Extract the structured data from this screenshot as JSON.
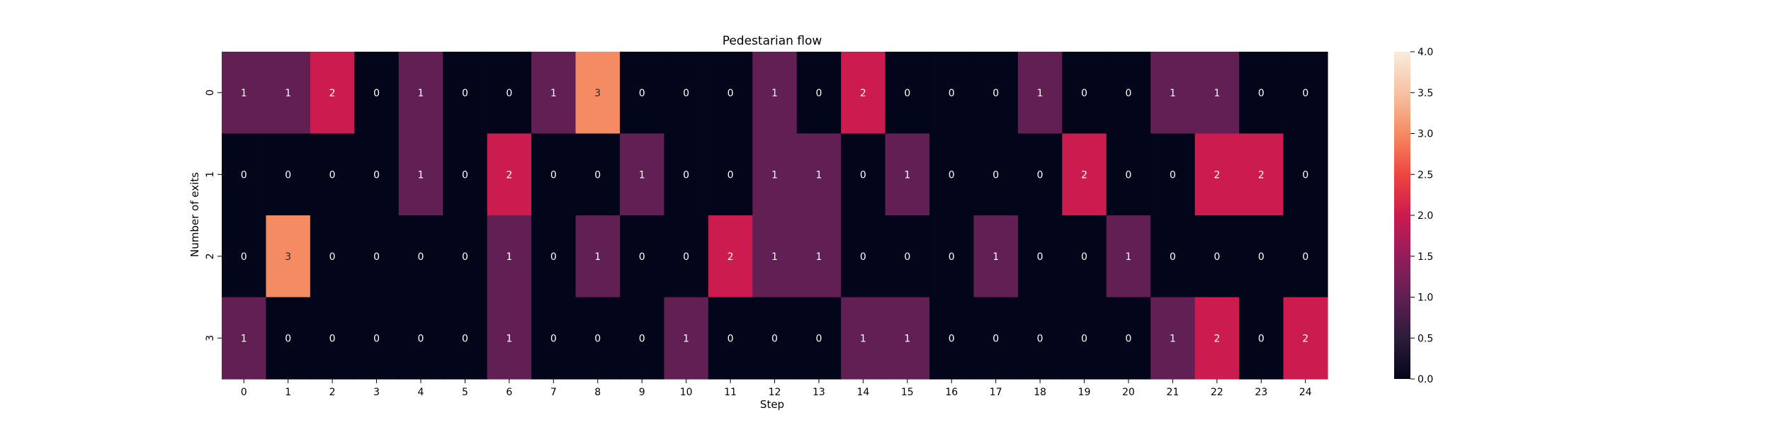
{
  "chart_data": {
    "type": "heatmap",
    "title": "Pedestarian flow",
    "xlabel": "Step",
    "ylabel": "Number of exits",
    "x_categories": [
      "0",
      "1",
      "2",
      "3",
      "4",
      "5",
      "6",
      "7",
      "8",
      "9",
      "10",
      "11",
      "12",
      "13",
      "14",
      "15",
      "16",
      "17",
      "18",
      "19",
      "20",
      "21",
      "22",
      "23",
      "24"
    ],
    "y_categories": [
      "0",
      "1",
      "2",
      "3"
    ],
    "values": [
      [
        1,
        1,
        2,
        0,
        1,
        0,
        0,
        1,
        3,
        0,
        0,
        0,
        1,
        0,
        2,
        0,
        0,
        0,
        1,
        0,
        0,
        1,
        1,
        0,
        0
      ],
      [
        0,
        0,
        0,
        0,
        1,
        0,
        2,
        0,
        0,
        1,
        0,
        0,
        1,
        1,
        0,
        1,
        0,
        0,
        0,
        2,
        0,
        0,
        2,
        2,
        0
      ],
      [
        0,
        3,
        0,
        0,
        0,
        0,
        1,
        0,
        1,
        0,
        0,
        2,
        1,
        1,
        0,
        0,
        0,
        1,
        0,
        0,
        1,
        0,
        0,
        0,
        0
      ],
      [
        1,
        0,
        0,
        0,
        0,
        0,
        1,
        0,
        0,
        0,
        1,
        0,
        0,
        0,
        1,
        1,
        0,
        0,
        0,
        0,
        0,
        1,
        2,
        0,
        2
      ]
    ],
    "annotations": true,
    "colorbar": {
      "min": 0.0,
      "max": 4.0,
      "ticks": [
        "0.0",
        "0.5",
        "1.0",
        "1.5",
        "2.0",
        "2.5",
        "3.0",
        "3.5",
        "4.0"
      ],
      "colormap": "rocket"
    },
    "grid": false
  }
}
